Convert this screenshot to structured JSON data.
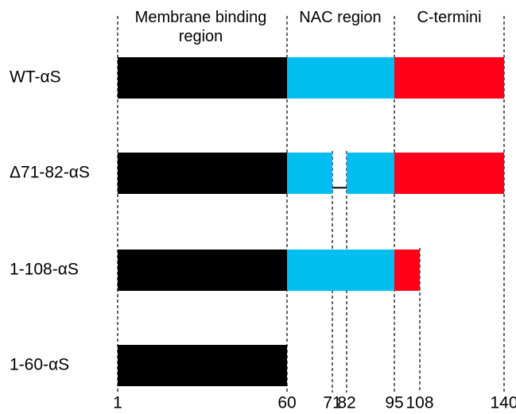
{
  "regions": [
    "Membrane binding region",
    "NAC region",
    "C-termini"
  ],
  "constructs": [
    {
      "label": "WT-αS",
      "segments": [
        {
          "start": 1,
          "end": 60,
          "color": "#000000"
        },
        {
          "start": 60,
          "end": 95,
          "color": "#00bff0"
        },
        {
          "start": 95,
          "end": 140,
          "color": "#ff0019"
        }
      ]
    },
    {
      "label": "Δ71-82-αS",
      "segments": [
        {
          "start": 1,
          "end": 60,
          "color": "#000000"
        },
        {
          "start": 60,
          "end": 71,
          "color": "#00bff0"
        },
        {
          "start": 82,
          "end": 95,
          "color": "#00bff0"
        },
        {
          "start": 95,
          "end": 140,
          "color": "#ff0019"
        }
      ]
    },
    {
      "label": "1-108-αS",
      "segments": [
        {
          "start": 1,
          "end": 60,
          "color": "#000000"
        },
        {
          "start": 60,
          "end": 95,
          "color": "#00bff0"
        },
        {
          "start": 95,
          "end": 108,
          "color": "#ff0019"
        }
      ]
    },
    {
      "label": "1-60-αS",
      "segments": [
        {
          "start": 1,
          "end": 60,
          "color": "#000000"
        }
      ]
    }
  ],
  "ticks": [
    1,
    60,
    71,
    82,
    95,
    108,
    140
  ]
}
